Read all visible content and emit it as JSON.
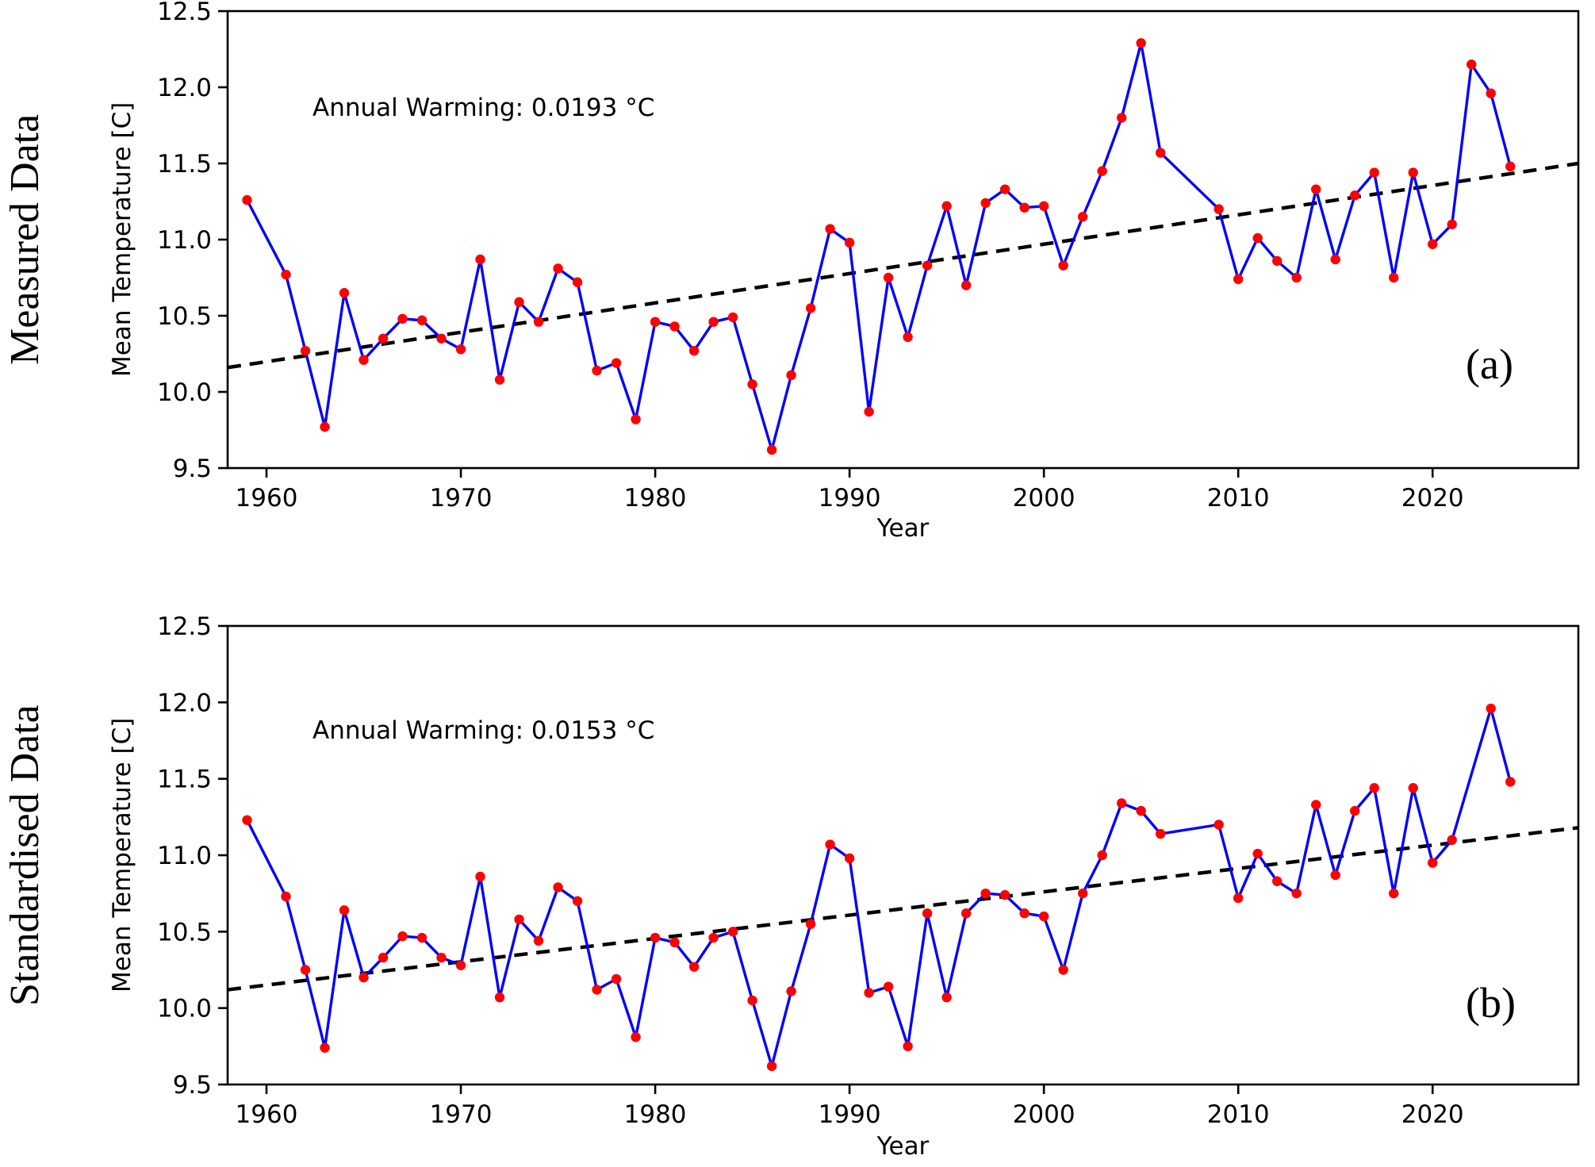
{
  "panels": [
    {
      "side_label": "Measured Data",
      "tag": "(a)"
    },
    {
      "side_label": "Standardised Data",
      "tag": "(b)"
    }
  ],
  "colors": {
    "line": "#0000ff",
    "marker": "#ff0000",
    "trend": "#000000",
    "axis": "#000000"
  },
  "chart_data": [
    {
      "type": "line",
      "title": "",
      "xlabel": "Year",
      "ylabel": "Mean Temperature [C]",
      "annotation": "Annual Warming: 0.0193 °C",
      "xlim": [
        1958,
        2027.5
      ],
      "ylim": [
        9.5,
        12.5
      ],
      "xticks": [
        1960,
        1970,
        1980,
        1990,
        2000,
        2010,
        2020
      ],
      "yticks": [
        9.5,
        10.0,
        10.5,
        11.0,
        11.5,
        12.0,
        12.5
      ],
      "grid": false,
      "legend": "none",
      "line_color": "#0000ff",
      "marker_color": "#ff0000",
      "trend": {
        "style": "dashed",
        "color": "#000000",
        "slope_per_year": 0.0193,
        "x": [
          1958,
          2027.5
        ],
        "y": [
          10.16,
          11.5
        ]
      },
      "series": [
        {
          "name": "annual-mean-temperature-measured",
          "years": [
            1959,
            1961,
            1962,
            1963,
            1964,
            1965,
            1966,
            1967,
            1968,
            1969,
            1970,
            1971,
            1972,
            1973,
            1974,
            1975,
            1976,
            1977,
            1978,
            1979,
            1980,
            1981,
            1982,
            1983,
            1984,
            1985,
            1986,
            1987,
            1988,
            1989,
            1990,
            1991,
            1992,
            1993,
            1994,
            1995,
            1996,
            1997,
            1998,
            1999,
            2000,
            2001,
            2002,
            2003,
            2004,
            2005,
            2006,
            2009,
            2010,
            2011,
            2012,
            2013,
            2014,
            2015,
            2016,
            2017,
            2018,
            2019,
            2020,
            2021,
            2022,
            2023,
            2024
          ],
          "values": [
            11.26,
            10.77,
            10.27,
            9.77,
            10.65,
            10.21,
            10.35,
            10.48,
            10.47,
            10.35,
            10.28,
            10.87,
            10.08,
            10.59,
            10.46,
            10.81,
            10.72,
            10.14,
            10.19,
            9.82,
            10.46,
            10.43,
            10.27,
            10.46,
            10.49,
            10.05,
            9.62,
            10.11,
            10.55,
            11.07,
            10.98,
            9.87,
            10.75,
            10.36,
            10.83,
            11.22,
            10.7,
            11.24,
            11.33,
            11.21,
            11.22,
            10.83,
            11.15,
            11.45,
            11.8,
            12.29,
            11.57,
            11.2,
            10.74,
            11.01,
            10.86,
            10.75,
            11.33,
            10.87,
            11.29,
            11.44,
            10.75,
            11.44,
            10.97,
            11.1,
            12.15,
            11.96,
            11.48
          ]
        }
      ]
    },
    {
      "type": "line",
      "title": "",
      "xlabel": "Year",
      "ylabel": "Mean Temperature [C]",
      "annotation": "Annual Warming: 0.0153 °C",
      "xlim": [
        1958,
        2027.5
      ],
      "ylim": [
        9.5,
        12.5
      ],
      "xticks": [
        1960,
        1970,
        1980,
        1990,
        2000,
        2010,
        2020
      ],
      "yticks": [
        9.5,
        10.0,
        10.5,
        11.0,
        11.5,
        12.0,
        12.5
      ],
      "grid": false,
      "legend": "none",
      "line_color": "#0000ff",
      "marker_color": "#ff0000",
      "trend": {
        "style": "dashed",
        "color": "#000000",
        "slope_per_year": 0.0153,
        "x": [
          1958,
          2027.5
        ],
        "y": [
          10.12,
          11.18
        ]
      },
      "series": [
        {
          "name": "annual-mean-temperature-standardised",
          "years": [
            1959,
            1961,
            1962,
            1963,
            1964,
            1965,
            1966,
            1967,
            1968,
            1969,
            1970,
            1971,
            1972,
            1973,
            1974,
            1975,
            1976,
            1977,
            1978,
            1979,
            1980,
            1981,
            1982,
            1983,
            1984,
            1985,
            1986,
            1987,
            1988,
            1989,
            1990,
            1991,
            1992,
            1993,
            1994,
            1995,
            1996,
            1997,
            1998,
            1999,
            2000,
            2001,
            2002,
            2003,
            2004,
            2005,
            2006,
            2009,
            2010,
            2011,
            2012,
            2013,
            2014,
            2015,
            2016,
            2017,
            2018,
            2019,
            2020,
            2021,
            2023,
            2024
          ],
          "values": [
            11.23,
            10.73,
            10.25,
            9.74,
            10.64,
            10.2,
            10.33,
            10.47,
            10.46,
            10.33,
            10.28,
            10.86,
            10.07,
            10.58,
            10.44,
            10.79,
            10.7,
            10.12,
            10.19,
            9.81,
            10.46,
            10.43,
            10.27,
            10.46,
            10.5,
            10.05,
            9.62,
            10.11,
            10.55,
            11.07,
            10.98,
            10.1,
            10.14,
            9.75,
            10.62,
            10.07,
            10.62,
            10.75,
            10.74,
            10.62,
            10.6,
            10.25,
            10.75,
            11.0,
            11.34,
            11.29,
            11.14,
            11.2,
            10.72,
            11.01,
            10.83,
            10.75,
            11.33,
            10.87,
            11.29,
            11.44,
            10.75,
            11.44,
            10.95,
            11.1,
            11.96,
            11.48
          ]
        }
      ]
    }
  ]
}
